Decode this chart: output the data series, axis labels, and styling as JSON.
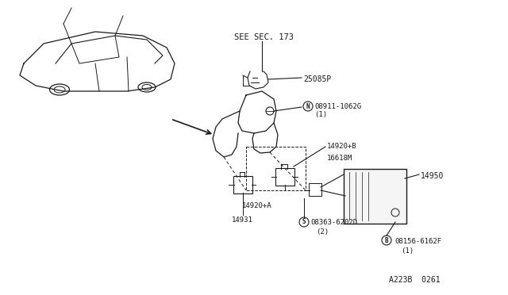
{
  "bg_color": "#ffffff",
  "fig_width": 6.4,
  "fig_height": 3.72,
  "dpi": 100,
  "labels": {
    "see_sec": "SEE SEC. 173",
    "part_25085P": "25085P",
    "part_08911": "N  08911-1062G\n(1)",
    "part_14920B": "14920+B",
    "part_16618M": "16618M",
    "part_14950": "14950",
    "part_14920A": "14920+A",
    "part_14931": "14931",
    "part_08363": "S  08363-6202D\n(2)",
    "part_08156": "B  08156-6162F\n(1)",
    "ref_code": "A223B  0261"
  }
}
